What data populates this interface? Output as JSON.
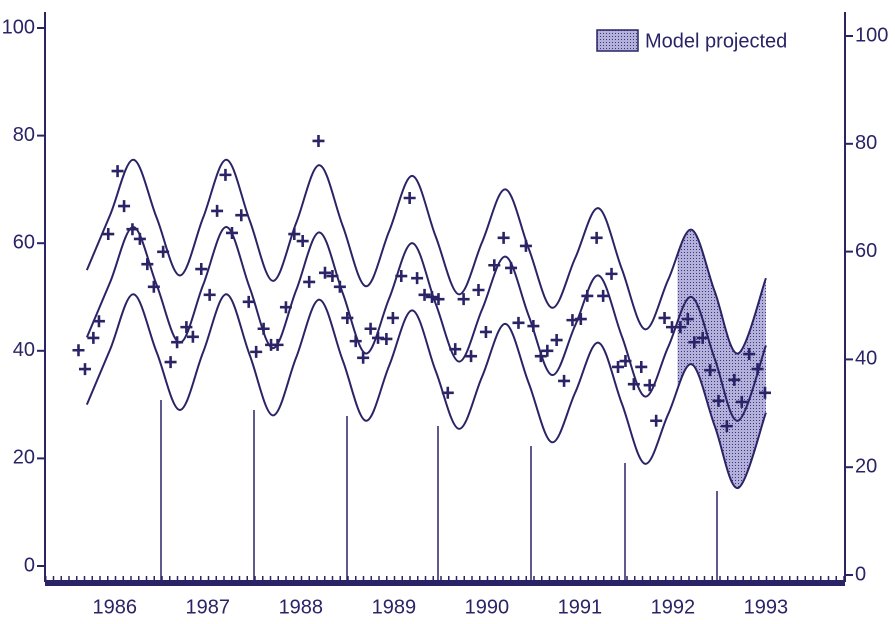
{
  "chart_data": {
    "type": "line",
    "color": "#2a2466",
    "xlim": [
      1985.75,
      1994.35
    ],
    "xticks": [
      {
        "value": 1986.5,
        "label": "1986"
      },
      {
        "value": 1987.5,
        "label": "1987"
      },
      {
        "value": 1988.5,
        "label": "1988"
      },
      {
        "value": 1989.5,
        "label": "1989"
      },
      {
        "value": 1990.5,
        "label": "1990"
      },
      {
        "value": 1991.5,
        "label": "1991"
      },
      {
        "value": 1992.5,
        "label": "1992"
      },
      {
        "value": 1993.5,
        "label": "1993"
      }
    ],
    "ylim": [
      0,
      100
    ],
    "yticks": [
      0,
      20,
      40,
      60,
      80,
      100
    ],
    "y2lim": [
      0,
      100
    ],
    "y2ticks": [
      0,
      20,
      40,
      60,
      80,
      100
    ],
    "x": [
      1986.2,
      1986.45,
      1986.7,
      1986.95,
      1987.2,
      1987.45,
      1987.7,
      1987.95,
      1988.2,
      1988.45,
      1988.7,
      1988.95,
      1989.2,
      1989.45,
      1989.7,
      1989.95,
      1990.2,
      1990.45,
      1990.7,
      1990.95,
      1991.2,
      1991.45,
      1991.7,
      1991.95,
      1992.2,
      1992.45,
      1992.7,
      1992.95,
      1993.2,
      1993.5
    ],
    "series": [
      {
        "color": "#2a2466",
        "values": [
          55,
          65.25,
          75.5,
          64.75,
          54,
          64.75,
          75.5,
          64.25,
          53,
          63.75,
          74.5,
          63.25,
          52,
          62.25,
          72.5,
          61.25,
          50.5,
          60.25,
          70,
          59,
          48,
          57.25,
          66.5,
          55.25,
          44,
          53.25,
          62.5,
          51,
          39.5,
          53.5
        ]
      },
      {
        "color": "#2a2466",
        "values": [
          42.5,
          52.75,
          63,
          52.25,
          41.5,
          52.25,
          63,
          51.75,
          40.5,
          51.25,
          62,
          50.75,
          39.5,
          49.75,
          60,
          48.75,
          38,
          47.75,
          57.5,
          46.5,
          35.5,
          44.75,
          54,
          42.75,
          31.5,
          40.75,
          50,
          38.5,
          27,
          41
        ]
      },
      {
        "color": "#2a2466",
        "values": [
          30,
          40.25,
          50.5,
          39.75,
          29,
          39.75,
          50.5,
          39.25,
          28,
          38.75,
          49.5,
          38.25,
          27,
          37.25,
          47.5,
          36.25,
          25.5,
          35.25,
          45,
          34,
          23,
          32.25,
          41.5,
          30.25,
          19,
          28.25,
          37.5,
          26,
          14.5,
          28.5
        ]
      }
    ],
    "scatter": {
      "marker": "+",
      "color": "#2a2466",
      "x": [
        1986.11,
        1986.18,
        1986.27,
        1986.33,
        1986.43,
        1986.53,
        1986.6,
        1986.69,
        1986.77,
        1986.85,
        1986.92,
        1987.02,
        1987.1,
        1987.17,
        1987.27,
        1987.34,
        1987.43,
        1987.52,
        1987.6,
        1987.69,
        1987.76,
        1987.86,
        1987.94,
        1988.02,
        1988.1,
        1988.18,
        1988.25,
        1988.34,
        1988.43,
        1988.52,
        1988.59,
        1988.69,
        1988.76,
        1988.84,
        1988.92,
        1989.0,
        1989.09,
        1989.17,
        1989.25,
        1989.33,
        1989.42,
        1989.49,
        1989.58,
        1989.67,
        1989.75,
        1989.83,
        1989.91,
        1989.98,
        1990.08,
        1990.16,
        1990.25,
        1990.33,
        1990.41,
        1990.49,
        1990.58,
        1990.68,
        1990.76,
        1990.84,
        1990.92,
        1991.0,
        1991.08,
        1991.15,
        1991.25,
        1991.33,
        1991.42,
        1991.51,
        1991.58,
        1991.68,
        1991.75,
        1991.84,
        1991.91,
        1991.99,
        1992.08,
        1992.16,
        1992.25,
        1992.32,
        1992.41,
        1992.49,
        1992.58,
        1992.66,
        1992.73,
        1992.82,
        1992.9,
        1992.99,
        1993.08,
        1993.16,
        1993.24,
        1993.32,
        1993.41,
        1993.49
      ],
      "values": [
        40.1,
        36.6,
        42.4,
        45.5,
        61.7,
        73.4,
        66.9,
        62.6,
        60.8,
        56.1,
        51.9,
        58.4,
        37.9,
        41.6,
        44.4,
        42.6,
        55.2,
        50.4,
        66,
        72.7,
        61.9,
        65.2,
        49.1,
        39.8,
        44.1,
        41.1,
        41.1,
        48.1,
        61.7,
        60.4,
        52.8,
        79,
        54.5,
        53.9,
        51.9,
        46.1,
        41.8,
        38.7,
        44.1,
        42.4,
        42.2,
        46.1,
        53.9,
        68.4,
        53.5,
        50.4,
        50,
        49.6,
        32.2,
        40.3,
        49.6,
        39,
        51.3,
        43.5,
        55.9,
        61,
        55.4,
        45.2,
        59.5,
        44.6,
        39,
        40,
        42,
        34.4,
        45.7,
        45.9,
        50.2,
        61,
        50.2,
        54.3,
        37,
        38.1,
        33.8,
        37,
        33.6,
        27,
        46.1,
        44.4,
        44.4,
        45.9,
        41.6,
        42.4,
        36.4,
        30.7,
        26,
        34.6,
        30.5,
        39.4,
        36.6,
        32.2
      ]
    },
    "shade_from": 1992.55,
    "shade_color": "#a4a2d0",
    "legend": {
      "label": "Model projected",
      "position": "top right"
    }
  }
}
